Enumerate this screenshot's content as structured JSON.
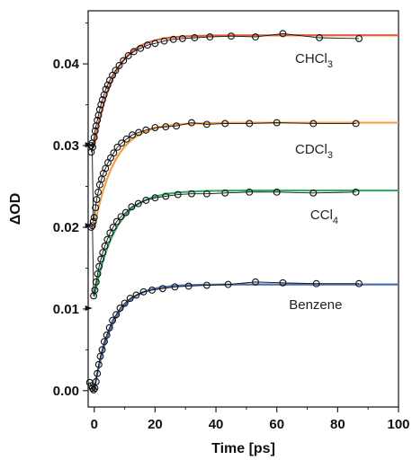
{
  "chart_data": {
    "type": "line",
    "xlabel": "Time [ps]",
    "ylabel": "ΔOD",
    "xlim": [
      -2,
      100
    ],
    "ylim": [
      -0.002,
      0.0465
    ],
    "x_ticks": [
      0,
      20,
      40,
      60,
      80,
      100
    ],
    "y_ticks": [
      0.0,
      0.01,
      0.02,
      0.03,
      0.04
    ],
    "x_tick_labels": [
      "0",
      "20",
      "40",
      "60",
      "80",
      "100"
    ],
    "y_tick_labels": [
      "0.00",
      "0.01",
      "0.02",
      "0.03",
      "0.04"
    ],
    "grid": false,
    "series": [
      {
        "label_main": "CHCl",
        "label_sub": "3",
        "color": "#e0603a",
        "fit": {
          "y0": 0.03,
          "amplitude": 0.0135,
          "tau": 6.5
        },
        "points": [
          [
            -1,
            0.0292
          ],
          [
            -0.5,
            0.0298
          ],
          [
            0,
            0.031
          ],
          [
            0.3,
            0.0318
          ],
          [
            0.6,
            0.0324
          ],
          [
            1,
            0.0331
          ],
          [
            1.4,
            0.0337
          ],
          [
            1.8,
            0.0344
          ],
          [
            2.2,
            0.035
          ],
          [
            2.7,
            0.0356
          ],
          [
            3.2,
            0.0362
          ],
          [
            3.8,
            0.0369
          ],
          [
            4.4,
            0.0374
          ],
          [
            5.1,
            0.038
          ],
          [
            6,
            0.0386
          ],
          [
            7,
            0.0392
          ],
          [
            8.2,
            0.0398
          ],
          [
            9.6,
            0.0404
          ],
          [
            11.2,
            0.041
          ],
          [
            13,
            0.0415
          ],
          [
            15.2,
            0.0419
          ],
          [
            17.5,
            0.0423
          ],
          [
            20,
            0.0425
          ],
          [
            23,
            0.0428
          ],
          [
            26,
            0.043
          ],
          [
            29,
            0.0431
          ],
          [
            33,
            0.0432
          ],
          [
            38,
            0.0433
          ],
          [
            45,
            0.0434
          ],
          [
            53,
            0.0433
          ],
          [
            62,
            0.0437
          ],
          [
            74,
            0.0432
          ],
          [
            87,
            0.0431
          ]
        ]
      },
      {
        "label_main": "CDCl",
        "label_sub": "3",
        "color": "#f0a044",
        "fit": {
          "y0": 0.02,
          "amplitude": 0.0128,
          "tau": 6.8
        },
        "points": [
          [
            -1,
            0.03
          ],
          [
            -0.7,
            0.0303
          ],
          [
            -0.3,
            0.0207
          ],
          [
            0,
            0.0212
          ],
          [
            0.4,
            0.0224
          ],
          [
            0.8,
            0.0234
          ],
          [
            1.3,
            0.0243
          ],
          [
            1.8,
            0.0252
          ],
          [
            2.4,
            0.0259
          ],
          [
            3,
            0.0266
          ],
          [
            3.7,
            0.0272
          ],
          [
            4.5,
            0.0279
          ],
          [
            5.4,
            0.0285
          ],
          [
            6.4,
            0.0291
          ],
          [
            7.6,
            0.0298
          ],
          [
            9,
            0.0303
          ],
          [
            10.6,
            0.0308
          ],
          [
            12.5,
            0.0313
          ],
          [
            14.6,
            0.0316
          ],
          [
            17,
            0.0319
          ],
          [
            20,
            0.0322
          ],
          [
            23.5,
            0.0323
          ],
          [
            27,
            0.0324
          ],
          [
            32,
            0.0328
          ],
          [
            37,
            0.0326
          ],
          [
            43,
            0.0327
          ],
          [
            51,
            0.0327
          ],
          [
            60,
            0.0328
          ],
          [
            72,
            0.0327
          ],
          [
            86,
            0.0327
          ]
        ]
      },
      {
        "label_main": "CCl",
        "label_sub": "4",
        "color": "#2fae6a",
        "fit": {
          "y0": 0.0115,
          "amplitude": 0.013,
          "tau": 7.0
        },
        "points": [
          [
            -1,
            0.02
          ],
          [
            -0.6,
            0.0202
          ],
          [
            -0.2,
            0.0116
          ],
          [
            0.2,
            0.0123
          ],
          [
            0.6,
            0.0133
          ],
          [
            1.1,
            0.0143
          ],
          [
            1.6,
            0.0152
          ],
          [
            2.2,
            0.0161
          ],
          [
            2.8,
            0.0169
          ],
          [
            3.5,
            0.0177
          ],
          [
            4.3,
            0.0185
          ],
          [
            5.2,
            0.0193
          ],
          [
            6.2,
            0.02
          ],
          [
            7.4,
            0.0207
          ],
          [
            8.8,
            0.0213
          ],
          [
            10.4,
            0.0218
          ],
          [
            12.3,
            0.0225
          ],
          [
            14.5,
            0.0229
          ],
          [
            17,
            0.0233
          ],
          [
            20,
            0.0236
          ],
          [
            23.5,
            0.0238
          ],
          [
            27.5,
            0.024
          ],
          [
            32,
            0.0241
          ],
          [
            37,
            0.0241
          ],
          [
            43,
            0.0242
          ],
          [
            51,
            0.0243
          ],
          [
            60,
            0.0243
          ],
          [
            72,
            0.0242
          ],
          [
            86,
            0.0243
          ]
        ]
      },
      {
        "label_main": "Benzene",
        "label_sub": "",
        "color": "#4a6fb5",
        "fit": {
          "y0": 0.0002,
          "amplitude": 0.0128,
          "tau": 6.2
        },
        "points": [
          [
            -1.5,
            0.001
          ],
          [
            -1,
            0.0006
          ],
          [
            -0.6,
            0.0003
          ],
          [
            -0.2,
            0.0001
          ],
          [
            0.2,
            0.0003
          ],
          [
            0.6,
            0.0011
          ],
          [
            1,
            0.0021
          ],
          [
            1.5,
            0.0032
          ],
          [
            2,
            0.0042
          ],
          [
            2.6,
            0.005
          ],
          [
            3.3,
            0.006
          ],
          [
            4.1,
            0.0068
          ],
          [
            5,
            0.0077
          ],
          [
            6,
            0.0086
          ],
          [
            7.2,
            0.0093
          ],
          [
            8.5,
            0.0101
          ],
          [
            10,
            0.0107
          ],
          [
            11.8,
            0.0113
          ],
          [
            13.8,
            0.0117
          ],
          [
            16.2,
            0.0121
          ],
          [
            19,
            0.0123
          ],
          [
            22.5,
            0.0125
          ],
          [
            26.5,
            0.0127
          ],
          [
            31,
            0.0128
          ],
          [
            37,
            0.0129
          ],
          [
            44,
            0.013
          ],
          [
            53,
            0.0133
          ],
          [
            62,
            0.0132
          ],
          [
            73,
            0.0131
          ],
          [
            87,
            0.0131
          ]
        ]
      }
    ],
    "series_labels_anchor": [
      {
        "x": 66,
        "y": 0.0401
      },
      {
        "x": 66,
        "y": 0.029
      },
      {
        "x": 71,
        "y": 0.021
      },
      {
        "x": 64,
        "y": 0.01
      }
    ],
    "left_markers": [
      {
        "x": -1.2,
        "y": 0.0301
      },
      {
        "x": -1.2,
        "y": 0.0202
      },
      {
        "x": -1.2,
        "y": 0.0101
      }
    ]
  }
}
